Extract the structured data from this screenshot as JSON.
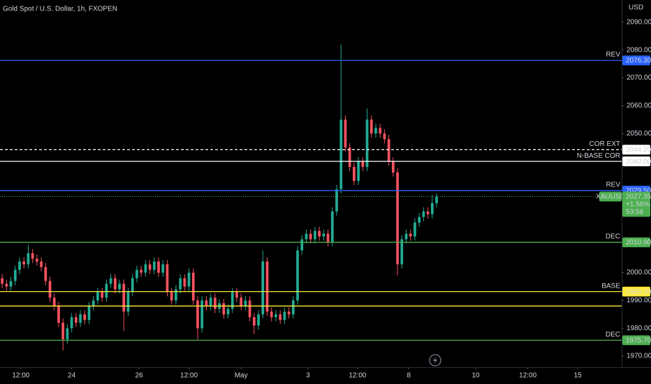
{
  "chart_data": {
    "type": "candlestick",
    "title": "Gold Spot / U.S. Dollar, 1h, FXOPEN",
    "currency": "USD",
    "up_color": "#22ab94",
    "down_color": "#f7525f",
    "ylim": [
      1966,
      2098
    ],
    "yticks": [
      {
        "value": 2090,
        "label": "2090.00"
      },
      {
        "value": 2080,
        "label": "2080.00"
      },
      {
        "value": 2070,
        "label": "2070.00"
      },
      {
        "value": 2060,
        "label": "2060.00"
      },
      {
        "value": 2050,
        "label": "2050.00"
      },
      {
        "value": 2000,
        "label": "2000.00"
      },
      {
        "value": 1990,
        "label": "1990.00"
      },
      {
        "value": 1980,
        "label": "1980.00"
      },
      {
        "value": 1970,
        "label": "1970.00"
      }
    ],
    "xlim": [
      -0.5,
      142.6
    ],
    "xticks": [
      {
        "value": 4.3,
        "label": "12:00"
      },
      {
        "value": 16,
        "label": "24"
      },
      {
        "value": 31.5,
        "label": "26"
      },
      {
        "value": 43,
        "label": "12:00"
      },
      {
        "value": 55,
        "label": "May"
      },
      {
        "value": 70.4,
        "label": "3"
      },
      {
        "value": 81.8,
        "label": "12:00"
      },
      {
        "value": 93.6,
        "label": "8"
      },
      {
        "value": 109,
        "label": "10"
      },
      {
        "value": 121,
        "label": "12:00"
      },
      {
        "value": 132.5,
        "label": "15"
      }
    ],
    "levels": [
      {
        "name": "REV",
        "value": 2076.3,
        "value_label": "2076.30",
        "color": "#2962ff"
      },
      {
        "name": "COR EXT",
        "value": 2044.2,
        "value_label": "2044.20",
        "color": "#ffffff",
        "dashed": true
      },
      {
        "name": "N-BASE COR",
        "value": 2040,
        "value_label": "2040.00",
        "color": "#ffffff"
      },
      {
        "name": "REV",
        "value": 2029.5,
        "value_label": "2029.50",
        "color": "#2962ff"
      },
      {
        "name": "DEC",
        "value": 2010.9,
        "value_label": "2010.90",
        "color": "#4caf50"
      },
      {
        "name": "BASE",
        "value": 1993.2,
        "value_label": "1993.20",
        "color": "#ffeb3b"
      },
      {
        "value": 1988,
        "color": "#ffeb3b"
      },
      {
        "name": "DEC",
        "value": 1975.7,
        "value_label": "1975.70",
        "color": "#4caf50"
      }
    ],
    "current": {
      "symbol": "XAUUSD",
      "value": 2027.35,
      "change": "+1.56%",
      "countdown": "53:58",
      "color": "#4caf50"
    },
    "ohlc": [
      [
        1998,
        1999.5,
        1994.5,
        1996
      ],
      [
        1996,
        1997.5,
        1993.5,
        1995
      ],
      [
        1995,
        1998.5,
        1993.5,
        1997
      ],
      [
        1997,
        2002.5,
        1995.5,
        2001
      ],
      [
        2001,
        2005.5,
        1999.5,
        2004
      ],
      [
        2004,
        2005.5,
        2001.5,
        2003
      ],
      [
        2003,
        2010,
        2001.5,
        2007
      ],
      [
        2007,
        2008.5,
        2003.5,
        2005
      ],
      [
        2005,
        2006.5,
        2002.5,
        2004
      ],
      [
        2004,
        2005.5,
        2000.5,
        2002
      ],
      [
        2002,
        2003.5,
        1995.5,
        1997
      ],
      [
        1997,
        1998.5,
        1989.5,
        1991
      ],
      [
        1991,
        1992.5,
        1986.5,
        1988
      ],
      [
        1988,
        1989.5,
        1980.5,
        1982
      ],
      [
        1982,
        1983.5,
        1972,
        1976
      ],
      [
        1976,
        1981.5,
        1974.5,
        1980
      ],
      [
        1980,
        1985.5,
        1978.5,
        1984
      ],
      [
        1984,
        1985.5,
        1980.5,
        1982
      ],
      [
        1982,
        1986.5,
        1980.5,
        1985
      ],
      [
        1985,
        1986.5,
        1981.5,
        1983
      ],
      [
        1983,
        1989.5,
        1981.5,
        1988
      ],
      [
        1988,
        1991.5,
        1986.5,
        1990
      ],
      [
        1990,
        1994.5,
        1988.5,
        1993
      ],
      [
        1993,
        1994.5,
        1989.5,
        1991
      ],
      [
        1991,
        1997.5,
        1989.5,
        1996
      ],
      [
        1996,
        1999.5,
        1994.5,
        1998
      ],
      [
        1998,
        1999.5,
        1992.5,
        1994
      ],
      [
        1994,
        1997.5,
        1992.5,
        1996
      ],
      [
        1996,
        1997.5,
        1979,
        1986
      ],
      [
        1986,
        1994.5,
        1984.5,
        1993
      ],
      [
        1993,
        1999.5,
        1991.5,
        1998
      ],
      [
        1998,
        2002.5,
        1996.5,
        2001
      ],
      [
        2001,
        2002.5,
        1998.5,
        2000
      ],
      [
        2000,
        2004.5,
        1998.5,
        2003
      ],
      [
        2003,
        2004.5,
        1999.5,
        2001
      ],
      [
        2001,
        2005.5,
        1999.5,
        2004
      ],
      [
        2004,
        2005.5,
        1998.5,
        2000
      ],
      [
        2000,
        2004.5,
        1998.5,
        2003
      ],
      [
        2003,
        2004.5,
        1991.5,
        1993
      ],
      [
        1993,
        1994.5,
        1988.5,
        1990
      ],
      [
        1990,
        1995.5,
        1988.5,
        1994
      ],
      [
        1994,
        1999.5,
        1992.5,
        1998
      ],
      [
        1998,
        1999.5,
        1993.5,
        1995
      ],
      [
        1995,
        2001.5,
        1993.5,
        2000
      ],
      [
        2000,
        2001.5,
        1988.5,
        1990
      ],
      [
        1990,
        1991.5,
        1976,
        1980
      ],
      [
        1980,
        1991.5,
        1978.5,
        1990
      ],
      [
        1990,
        1991.5,
        1986.5,
        1988
      ],
      [
        1988,
        1992.5,
        1986.5,
        1991
      ],
      [
        1991,
        1992.5,
        1985.5,
        1987
      ],
      [
        1987,
        1990.5,
        1985.5,
        1989
      ],
      [
        1989,
        1990.5,
        1983.5,
        1985
      ],
      [
        1985,
        1988.5,
        1983.5,
        1987
      ],
      [
        1987,
        1994.5,
        1985.5,
        1993
      ],
      [
        1993,
        1994.5,
        1989.5,
        1991
      ],
      [
        1991,
        1992.5,
        1986.5,
        1988
      ],
      [
        1988,
        1991.5,
        1986.5,
        1990
      ],
      [
        1990,
        1991.5,
        1982.5,
        1984
      ],
      [
        1984,
        1985.5,
        1978,
        1981
      ],
      [
        1981,
        1986.5,
        1979.5,
        1985
      ],
      [
        1985,
        2008,
        1983.5,
        2004
      ],
      [
        2004,
        2005.5,
        1984.5,
        1986
      ],
      [
        1986,
        1987.5,
        1982.5,
        1984
      ],
      [
        1984,
        1986.5,
        1982.5,
        1985
      ],
      [
        1985,
        1986.5,
        1981.5,
        1983
      ],
      [
        1983,
        1987.5,
        1981.5,
        1986
      ],
      [
        1986,
        1987.5,
        1983.5,
        1985
      ],
      [
        1985,
        1991.5,
        1983.5,
        1990
      ],
      [
        1990,
        2009.5,
        1988.5,
        2008
      ],
      [
        2008,
        2013.5,
        2006.5,
        2012
      ],
      [
        2012,
        2015.5,
        2010.5,
        2014
      ],
      [
        2014,
        2015.5,
        2010.5,
        2012
      ],
      [
        2012,
        2016.5,
        2010.5,
        2015
      ],
      [
        2015,
        2016.5,
        2011.5,
        2013
      ],
      [
        2013,
        2015.5,
        2011.5,
        2014
      ],
      [
        2014,
        2015.5,
        2009.5,
        2011
      ],
      [
        2011,
        2023.5,
        2009.5,
        2022
      ],
      [
        2022,
        2031.5,
        2020.5,
        2030
      ],
      [
        2030,
        2082,
        2028.5,
        2055
      ],
      [
        2055,
        2056.5,
        2043.5,
        2045
      ],
      [
        2045,
        2046.5,
        2036.5,
        2038
      ],
      [
        2038,
        2039.5,
        2031.5,
        2033
      ],
      [
        2033,
        2041.5,
        2031.5,
        2040
      ],
      [
        2040,
        2041.5,
        2036.5,
        2038
      ],
      [
        2038,
        2059,
        2036.5,
        2055
      ],
      [
        2055,
        2056.5,
        2048.5,
        2050
      ],
      [
        2050,
        2053.5,
        2048.5,
        2052
      ],
      [
        2052,
        2053.5,
        2048.5,
        2050
      ],
      [
        2050,
        2051.5,
        2046.5,
        2048
      ],
      [
        2048,
        2049.5,
        2038.5,
        2040
      ],
      [
        2040,
        2041.5,
        2034.5,
        2036
      ],
      [
        2036,
        2037.5,
        1999,
        2003
      ],
      [
        2003,
        2013.5,
        2001.5,
        2012
      ],
      [
        2012,
        2015.5,
        2010.5,
        2014
      ],
      [
        2014,
        2015.5,
        2011.5,
        2013
      ],
      [
        2013,
        2019.5,
        2011.5,
        2018
      ],
      [
        2018,
        2021.5,
        2016.5,
        2020
      ],
      [
        2020,
        2023.5,
        2018.5,
        2022
      ],
      [
        2022,
        2023.5,
        2019.5,
        2021
      ],
      [
        2021,
        2028,
        2019.5,
        2025
      ],
      [
        2025,
        2028.5,
        2023.5,
        2027.35
      ]
    ]
  }
}
